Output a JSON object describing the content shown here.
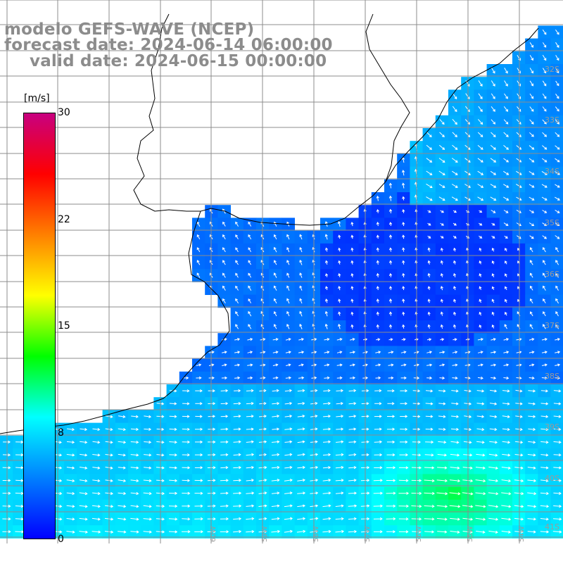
{
  "title": {
    "line1": "modelo GEFS-WAVE (NCEP)",
    "line2": "forecast date: 2024-06-14 06:00:00",
    "line3": "valid date: 2024-06-15 00:00:00"
  },
  "colorbar": {
    "unit": "[m/s]",
    "min": 0,
    "max": 30,
    "ticks": [
      {
        "label": "30",
        "value": 30
      },
      {
        "label": "22",
        "value": 22.5
      },
      {
        "label": "15",
        "value": 15
      },
      {
        "label": "8",
        "value": 7.5
      },
      {
        "label": "0",
        "value": 0
      }
    ],
    "colors": [
      "#0000ff",
      "#0080ff",
      "#00ffff",
      "#00ff00",
      "#ffff00",
      "#ff8000",
      "#ff0000",
      "#c80080"
    ]
  },
  "map": {
    "field": "wind speed and direction",
    "land_color": "#ffffff",
    "grid_color": "#8c8c8c",
    "coast_color": "#000000",
    "arrow_color": "#ffffff",
    "lat_labels": [
      "32S",
      "33S",
      "34S",
      "35S",
      "36S",
      "37S",
      "38S",
      "39S",
      "40S",
      "41S"
    ],
    "lon_labels": [
      "60W",
      "59W",
      "58W",
      "57W",
      "56W",
      "55W",
      "54W"
    ]
  }
}
